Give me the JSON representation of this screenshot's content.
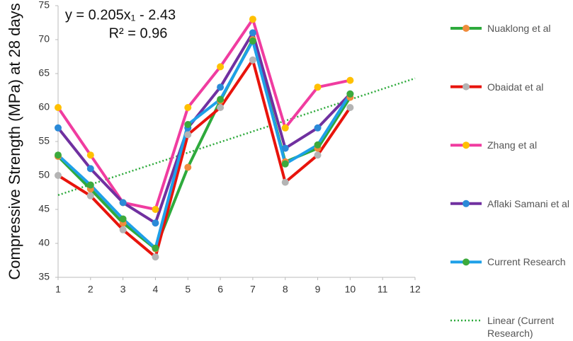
{
  "chart_data": {
    "type": "line",
    "y_label": "Compressive Strength (MPa) at 28 days",
    "annotations": [
      "y = 0.205x₁ - 2.43",
      "R² = 0.96"
    ],
    "xlim": [
      1,
      12
    ],
    "xticks": [
      1,
      2,
      3,
      4,
      5,
      6,
      7,
      8,
      9,
      10,
      11,
      12
    ],
    "ylim": [
      35,
      75
    ],
    "yticks": [
      35,
      40,
      45,
      50,
      55,
      60,
      65,
      70,
      75
    ],
    "grid": false,
    "legend": "right",
    "x": [
      1,
      2,
      3,
      4,
      5,
      6,
      7,
      8,
      9,
      10
    ],
    "series": [
      {
        "name": "Nuaklong et al",
        "color": "#2eaa3c",
        "marker_color": "#f08c3c",
        "values": [
          52.8,
          48,
          43,
          39.2,
          51.2,
          61,
          70,
          52,
          54,
          61.5
        ]
      },
      {
        "name": "Obaidat et al",
        "color": "#e8140c",
        "marker_color": "#b4b4b4",
        "values": [
          50,
          47,
          42,
          38,
          56,
          60,
          67,
          49,
          53,
          60
        ]
      },
      {
        "name": "Zhang et al",
        "color": "#f03ca0",
        "marker_color": "#ffc000",
        "values": [
          60,
          53,
          46,
          45,
          60,
          66,
          73,
          57,
          63,
          64
        ]
      },
      {
        "name": "Aflaki Samani et al",
        "color": "#7030a0",
        "marker_color": "#2a8ad8",
        "values": [
          57,
          51,
          46,
          43,
          57,
          63,
          71,
          54,
          57,
          62
        ]
      },
      {
        "name": "Current Research",
        "color": "#1ea0e8",
        "marker_color": "#3caa3c",
        "values": [
          53,
          48.6,
          43.6,
          39.3,
          57.5,
          61.2,
          69.8,
          51.7,
          54.5,
          62
        ]
      }
    ],
    "trendline": {
      "name": "Linear (Current Research)",
      "color": "#2eaa3c",
      "x": [
        1,
        12
      ],
      "values": [
        47.1,
        64.3
      ]
    }
  }
}
